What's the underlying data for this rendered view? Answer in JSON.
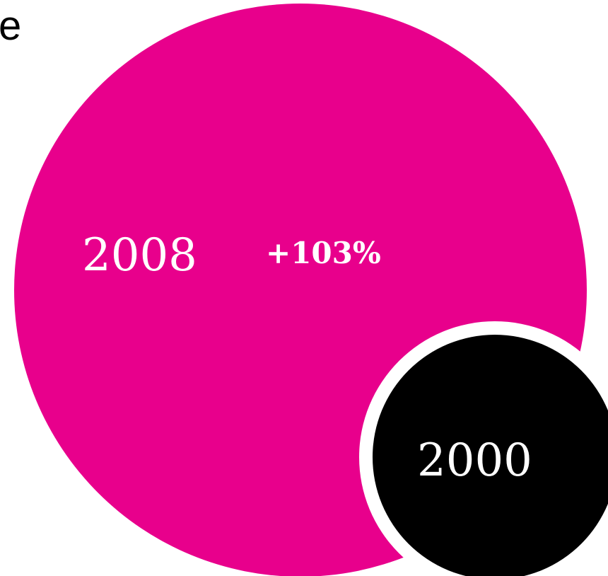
{
  "corner_text": "e",
  "chart_data": {
    "type": "bubble",
    "series": [
      {
        "name": "2008",
        "label": "2008",
        "change_label": "+103%",
        "value": 2.03,
        "color": "#e8008c"
      },
      {
        "name": "2000",
        "label": "2000",
        "value": 1.0,
        "color": "#000000"
      }
    ],
    "grid": false,
    "legend": "none"
  }
}
